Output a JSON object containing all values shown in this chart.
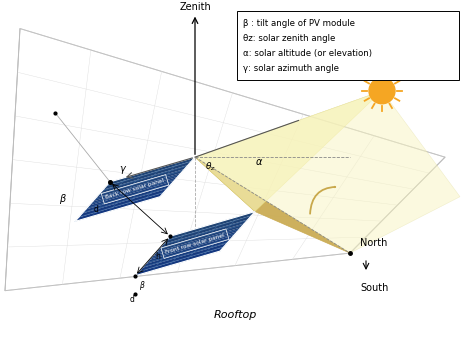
{
  "legend_text": [
    "β : tilt angle of PV module",
    "θz: solar zenith angle",
    "α: solar altitude (or elevation)",
    "γ: solar azimuth angle"
  ],
  "back_panel_label": "Back row solar panel",
  "front_panel_label": "Front row solar panel",
  "rooftop_label": "Rooftop",
  "zenith_label": "Zenith",
  "north_label": "North",
  "south_label": "South",
  "panel_color_base": [
    0.08,
    0.22,
    0.5
  ],
  "panel_stripe_color": "#4a7ab5",
  "shadow_color_dark": "#c8a84b",
  "shadow_color_light": "#f5f0b0",
  "sun_color": "#f5a623",
  "background_color": "#ffffff",
  "line_color": "#888888",
  "dim_color": "#333333"
}
